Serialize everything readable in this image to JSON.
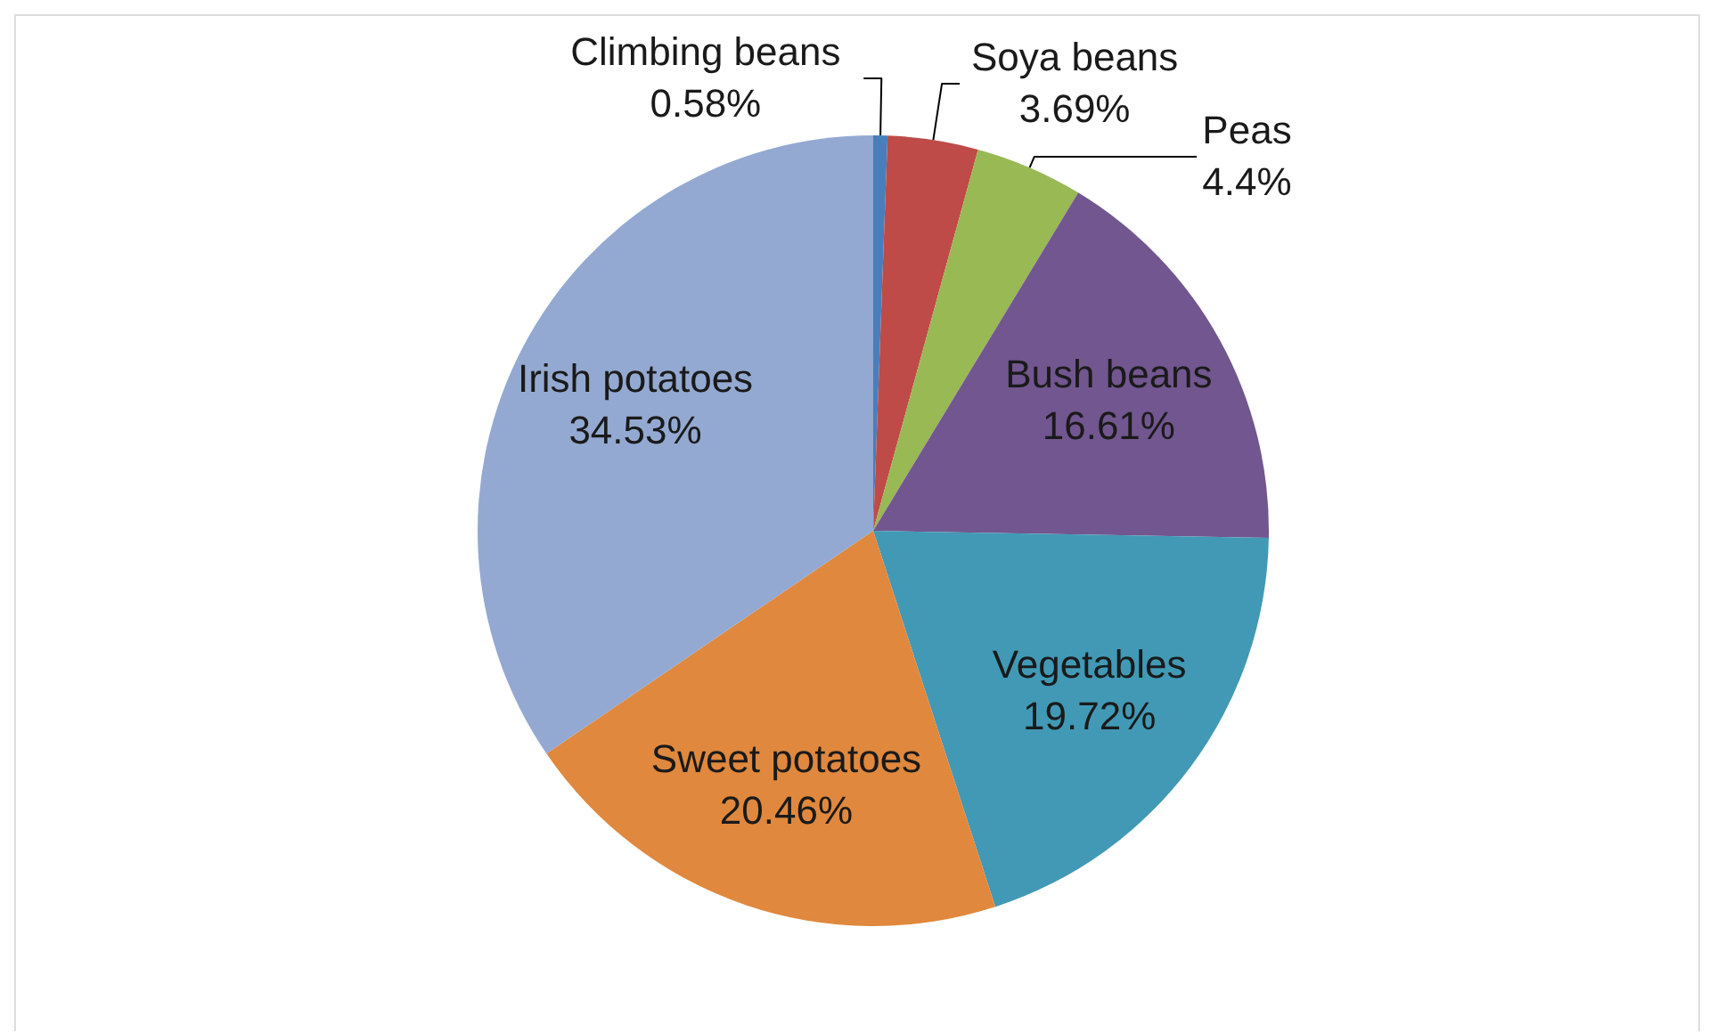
{
  "chart_data": {
    "type": "pie",
    "categories": [
      "Climbing beans",
      "Soya beans",
      "Peas",
      "Bush beans",
      "Vegetables",
      "Sweet potatoes",
      "Irish potatoes"
    ],
    "values": [
      0.58,
      3.69,
      4.4,
      16.61,
      19.72,
      20.46,
      34.53
    ],
    "colors": [
      "#4a7ebb",
      "#be4b48",
      "#98b954",
      "#72568f",
      "#4199b5",
      "#e0883d",
      "#93a9d1"
    ],
    "value_labels": [
      "0.58%",
      "3.69%",
      "4.4%",
      "16.61%",
      "19.72%",
      "20.46%",
      "34.53%"
    ]
  }
}
